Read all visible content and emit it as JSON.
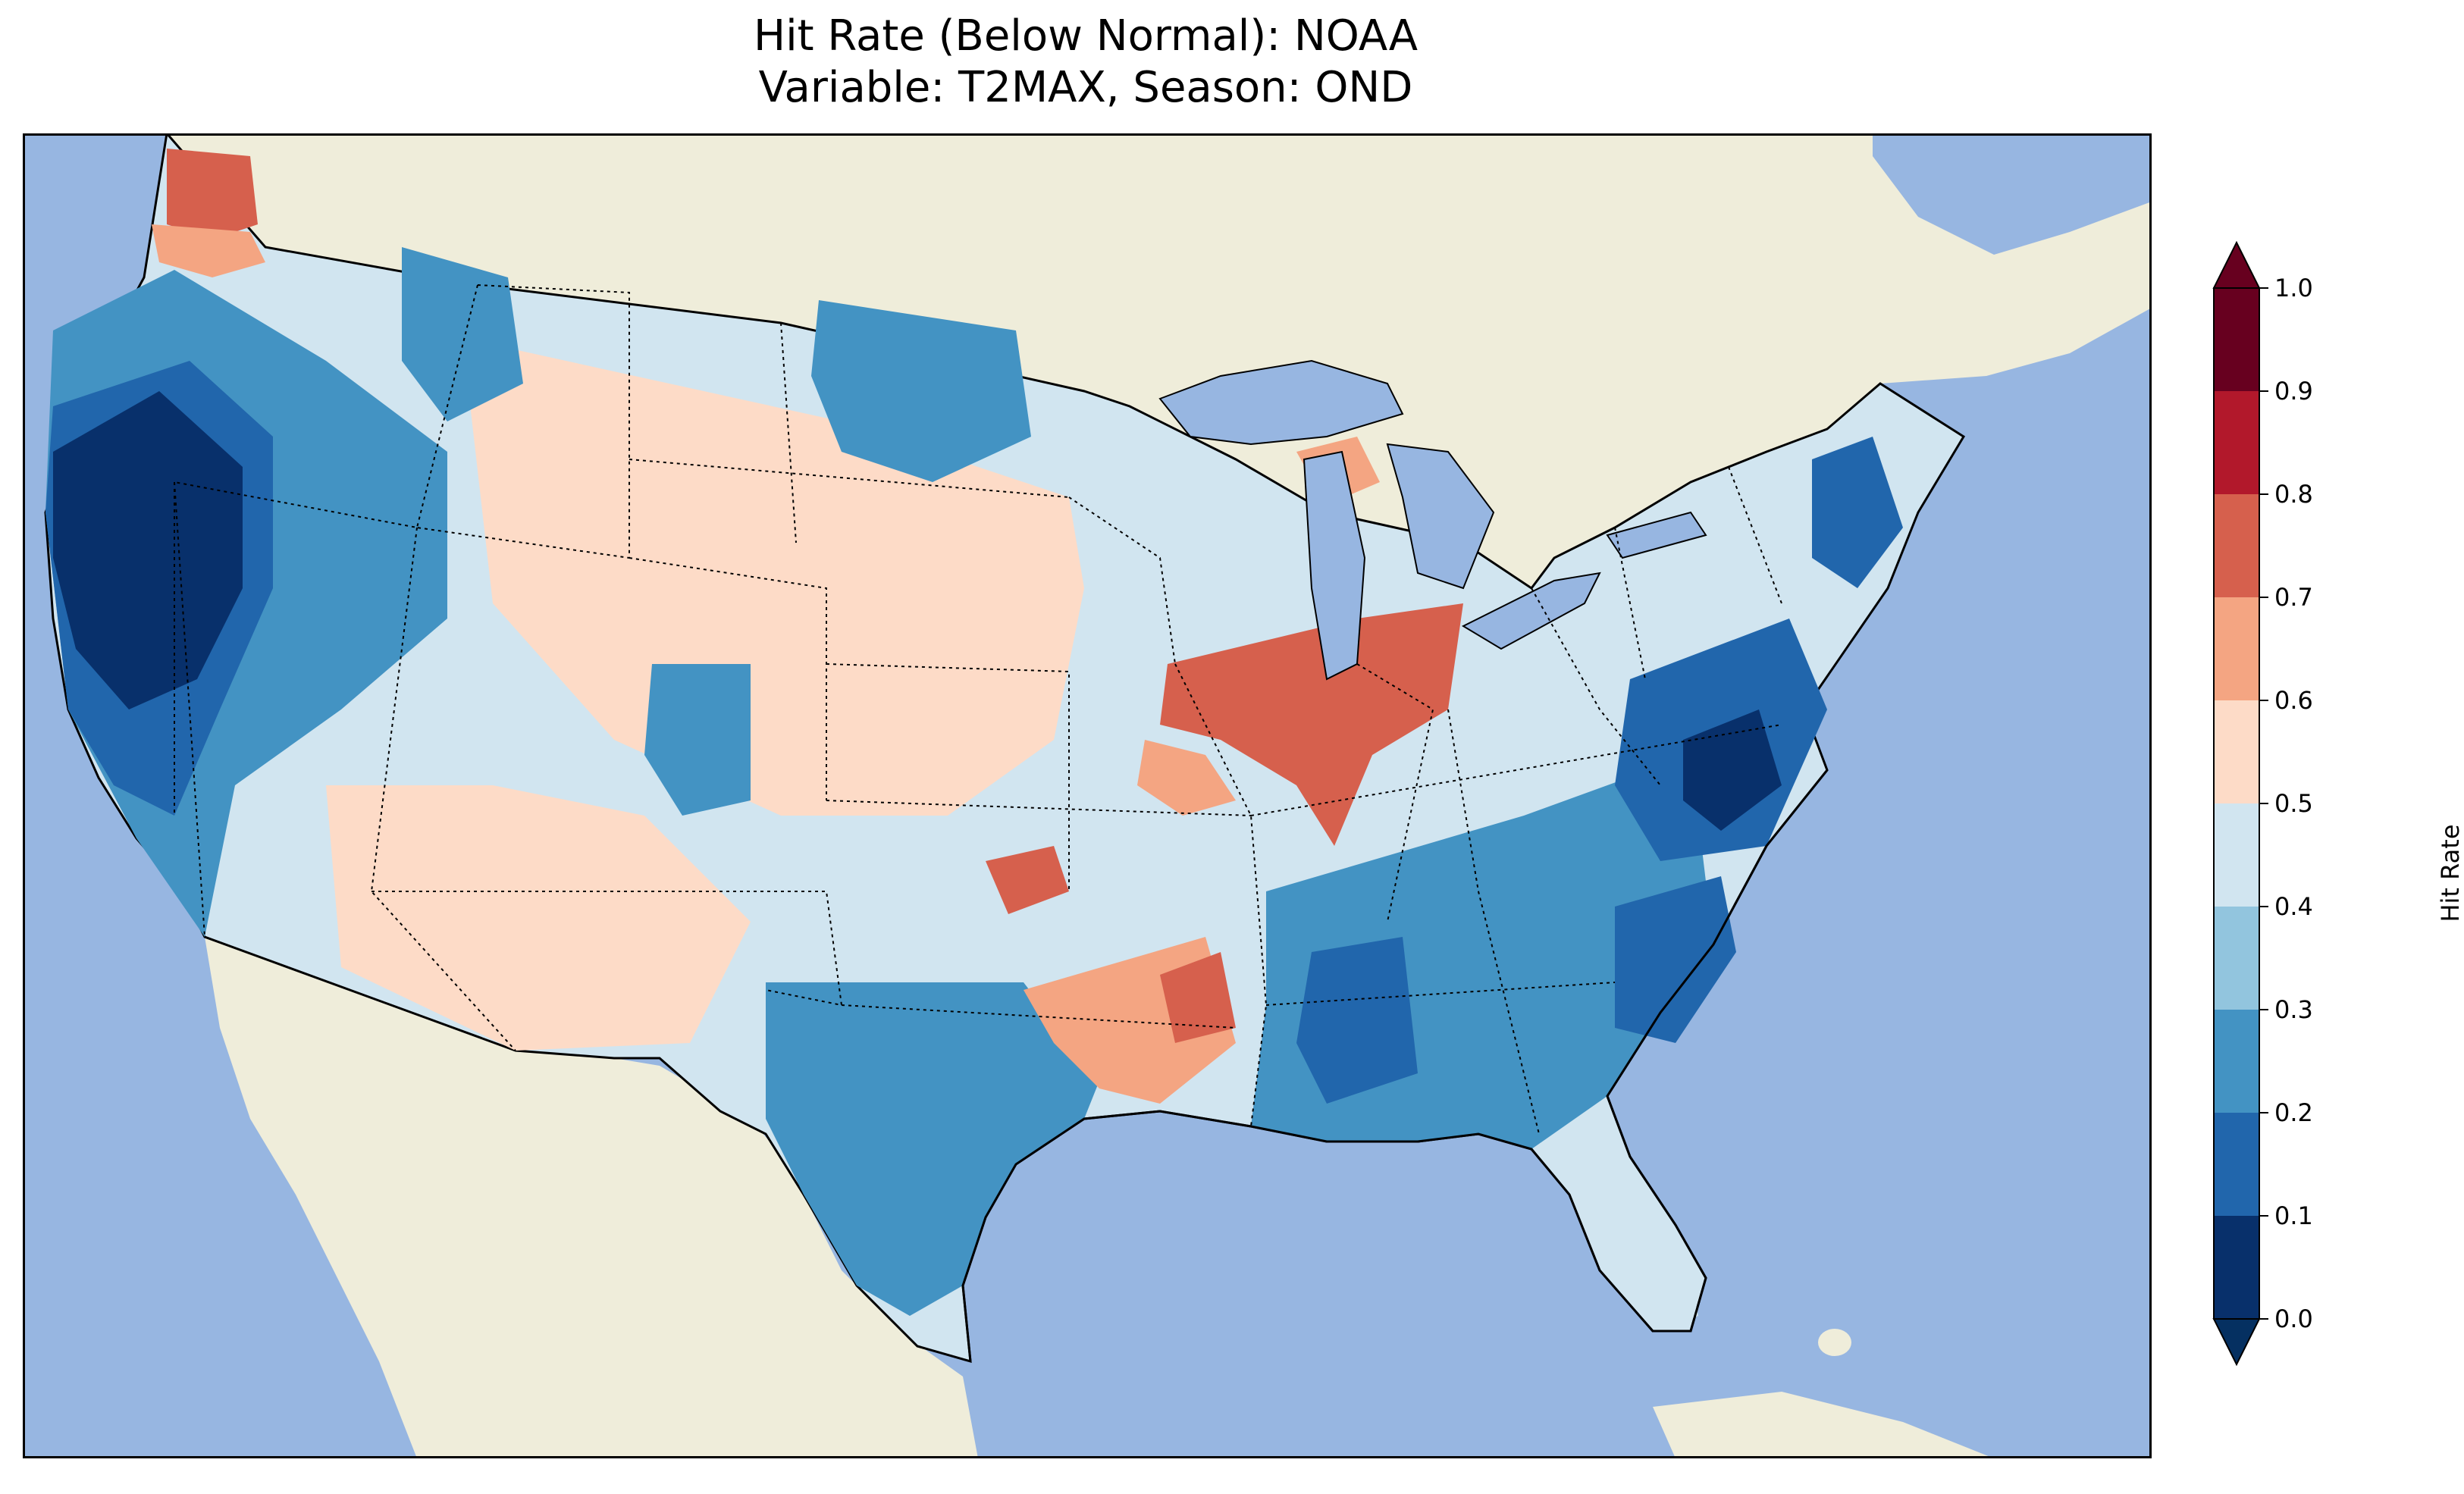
{
  "title": {
    "line1": "Hit Rate (Below Normal): NOAA",
    "line2": "Variable: T2MAX, Season: OND"
  },
  "colors": {
    "ocean": "#97b6e1",
    "land": "#efedda",
    "bins": [
      "#08306b",
      "#2166ac",
      "#4393c3",
      "#92c5de",
      "#d1e5f0",
      "#fddbc7",
      "#f4a582",
      "#d6604d",
      "#b2182b",
      "#67001f"
    ],
    "under": "#053061",
    "over": "#67001f"
  },
  "colorbar": {
    "label": "Hit Rate",
    "ticks": [
      "0.0",
      "0.1",
      "0.2",
      "0.3",
      "0.4",
      "0.5",
      "0.6",
      "0.7",
      "0.8",
      "0.9",
      "1.0"
    ],
    "extend": "both"
  },
  "regions": {
    "pacific_northwest_coast": "0.0-0.1",
    "puget_sound": "0.7-0.8",
    "northern_california": "0.0-0.1",
    "great_basin": "0.4-0.5",
    "southwest": "0.5-0.6",
    "north_dakota": "0.2-0.3",
    "central_plains": "0.5-0.6",
    "texas": "0.2-0.3",
    "ark_la_tex": "0.7-0.8",
    "illinois_indiana": "0.7-0.8",
    "southeast": "0.2-0.3",
    "mid_atlantic": "0.0-0.1",
    "florida": "0.4-0.5",
    "new_england": "0.1-0.2"
  }
}
